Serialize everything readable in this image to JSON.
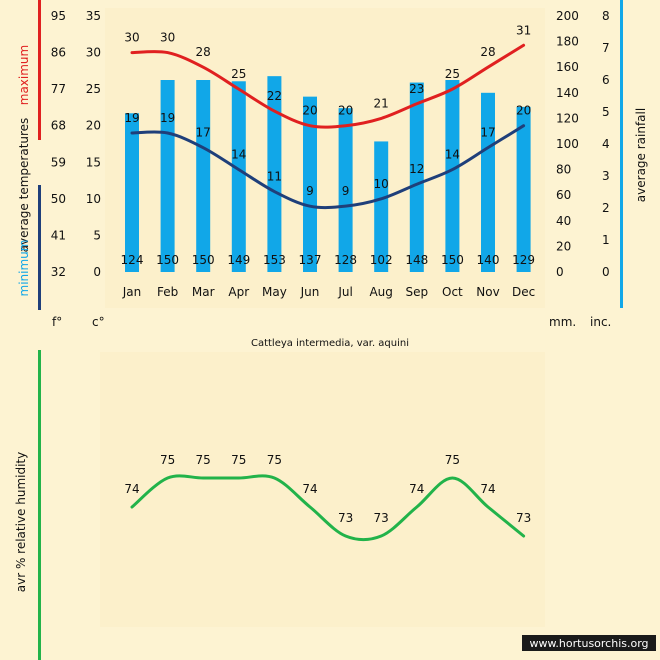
{
  "colors": {
    "background": "#fdf3d2",
    "bar": "#11a7e8",
    "max_line": "#e02020",
    "min_line": "#1f3f7a",
    "humidity_line": "#22b34a",
    "rain_axis_bar": "#11a7e8",
    "temp_axis_red": "#e02020",
    "temp_axis_navy": "#1f3f7a",
    "humidity_axis": "#22b34a"
  },
  "labels": {
    "maximum": "maximum",
    "average_temperatures": "average temperatures",
    "minimum": "minimum",
    "average_rainfall": "average rainfall",
    "humidity": "avr % relative humidity",
    "unit_f": "f°",
    "unit_c": "c°",
    "unit_mm": "mm.",
    "unit_inc": "inc.",
    "subtitle": "Cattleya intermedia, var. aquini",
    "watermark": "www.hortusorchis.org"
  },
  "chart_data": [
    {
      "type": "bar+line",
      "categories": [
        "Jan",
        "Feb",
        "Mar",
        "Apr",
        "May",
        "Jun",
        "Jul",
        "Aug",
        "Sep",
        "Oct",
        "Nov",
        "Dec"
      ],
      "series": [
        {
          "name": "average rainfall",
          "kind": "bar",
          "axis": "mm",
          "values": [
            124,
            150,
            150,
            149,
            153,
            137,
            128,
            102,
            148,
            150,
            140,
            129
          ]
        },
        {
          "name": "maximum",
          "kind": "line",
          "axis": "celsius",
          "values": [
            30,
            30,
            28,
            25,
            22,
            20,
            20,
            21,
            23,
            25,
            28,
            31
          ]
        },
        {
          "name": "minimum",
          "kind": "line",
          "axis": "celsius",
          "values": [
            19,
            19,
            17,
            14,
            11,
            9,
            9,
            10,
            12,
            14,
            17,
            20
          ]
        }
      ],
      "axes": {
        "fahrenheit": {
          "ticks": [
            "95",
            "86",
            "77",
            "68",
            "59",
            "50",
            "41",
            "32"
          ],
          "range": [
            32,
            95
          ]
        },
        "celsius": {
          "ticks": [
            "35",
            "30",
            "25",
            "20",
            "15",
            "10",
            "5",
            "0"
          ],
          "range": [
            0,
            35
          ]
        },
        "mm": {
          "ticks": [
            "200",
            "180",
            "160",
            "140",
            "120",
            "100",
            "80",
            "60",
            "40",
            "20",
            "0"
          ],
          "range": [
            0,
            200
          ]
        },
        "inches": {
          "ticks": [
            "8",
            "7",
            "6",
            "5",
            "4",
            "3",
            "2",
            "1",
            "0"
          ],
          "range": [
            0,
            8
          ]
        }
      },
      "grid": false
    },
    {
      "type": "line",
      "categories": [
        "Jan",
        "Feb",
        "Mar",
        "Apr",
        "May",
        "Jun",
        "Jul",
        "Aug",
        "Sep",
        "Oct",
        "Nov",
        "Dec"
      ],
      "series": [
        {
          "name": "avr % relative humidity",
          "values": [
            74,
            75,
            75,
            75,
            75,
            74,
            73,
            73,
            74,
            75,
            74,
            73
          ]
        }
      ],
      "grid": false
    }
  ]
}
